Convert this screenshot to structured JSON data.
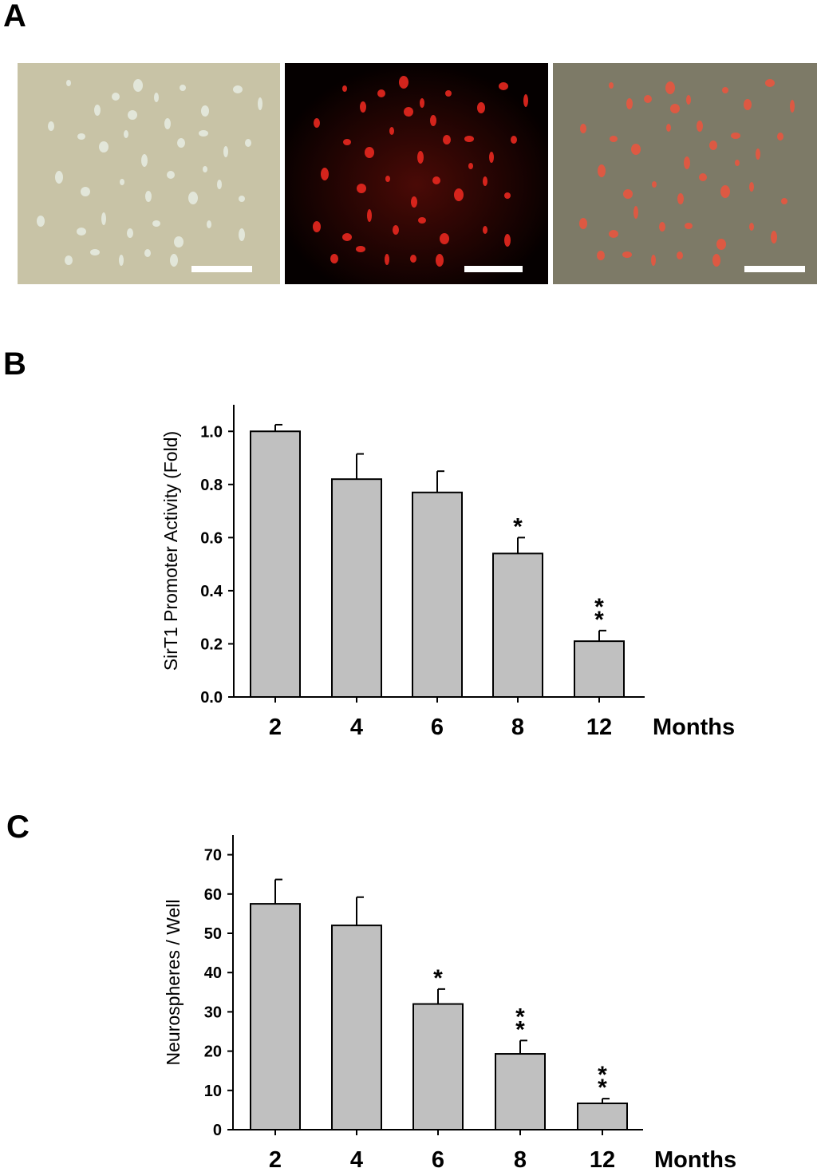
{
  "panels": {
    "a": {
      "letter": "A"
    },
    "b": {
      "letter": "B"
    },
    "c": {
      "letter": "C"
    }
  },
  "micrographs": [
    {
      "view": "phase-contrast",
      "background": "#c8c3a6",
      "cell_color": "#e9efe6"
    },
    {
      "view": "fluorescence",
      "background": "#050000",
      "cell_color": "#e8281f"
    },
    {
      "view": "merge",
      "background": "#7d7a67",
      "cell_color": "#e8553f"
    }
  ],
  "chart_data": [
    {
      "type": "bar",
      "panel": "B",
      "categories": [
        "2",
        "4",
        "6",
        "8",
        "12"
      ],
      "values": [
        1.0,
        0.82,
        0.77,
        0.54,
        0.21
      ],
      "errors": [
        0.025,
        0.095,
        0.08,
        0.06,
        0.04
      ],
      "significance": [
        "",
        "",
        "",
        "*",
        "**"
      ],
      "xlabel": "Months",
      "ylabel": "SirT1 Promoter Activity (Fold)",
      "ylim": [
        0,
        1.1
      ],
      "yticks": [
        "0.0",
        "0.2",
        "0.4",
        "0.6",
        "0.8",
        "1.0"
      ],
      "bar_color": "#c0c0c0",
      "grid": false
    },
    {
      "type": "bar",
      "panel": "C",
      "categories": [
        "2",
        "4",
        "6",
        "8",
        "12"
      ],
      "values": [
        57.5,
        52,
        32,
        19.3,
        6.7
      ],
      "errors": [
        6.2,
        7.2,
        3.8,
        3.4,
        1.2
      ],
      "significance": [
        "",
        "",
        "*",
        "**",
        "**"
      ],
      "xlabel": "Months",
      "ylabel": "Neurospheres / Well",
      "ylim": [
        0,
        75
      ],
      "yticks": [
        "0",
        "10",
        "20",
        "30",
        "40",
        "50",
        "60",
        "70"
      ],
      "bar_color": "#c0c0c0",
      "grid": false
    }
  ]
}
